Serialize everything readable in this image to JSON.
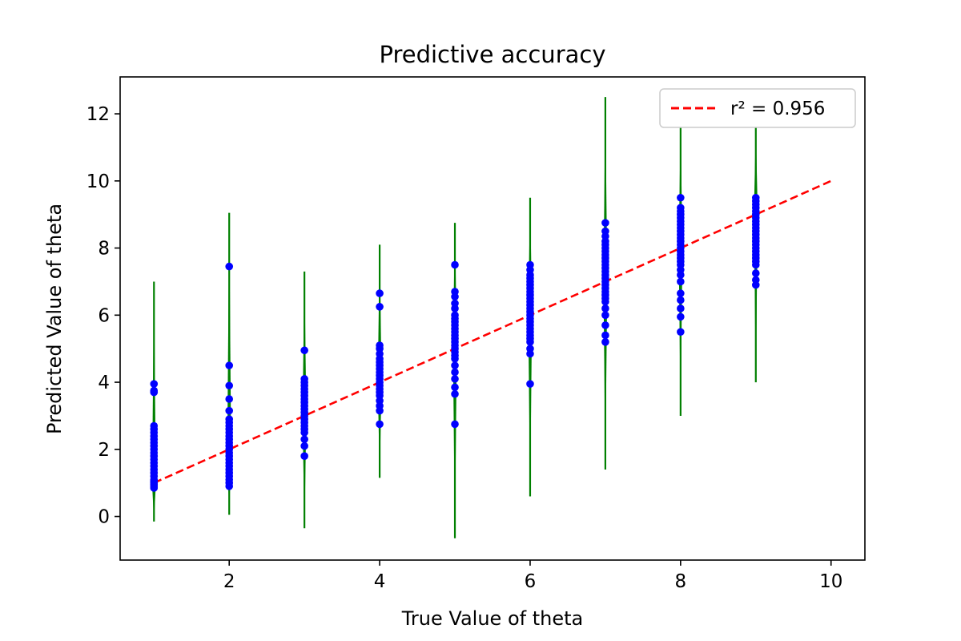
{
  "chart_data": {
    "type": "scatter",
    "title": "Predictive accuracy",
    "xlabel": "True Value of theta",
    "ylabel": "Predicted Value of theta",
    "xlim": [
      0.55,
      10.45
    ],
    "ylim": [
      -1.3,
      13.1
    ],
    "xticks": [
      2,
      4,
      6,
      8,
      10
    ],
    "yticks": [
      0,
      2,
      4,
      6,
      8,
      10,
      12
    ],
    "grid": false,
    "legend_position": "top-right",
    "colors": {
      "points": "#0000ff",
      "error_bars": "#008000",
      "fit_line": "#ff0000"
    },
    "fit_line": {
      "label": "r² = 0.956",
      "x": [
        1,
        10
      ],
      "y": [
        1,
        10
      ],
      "style": "dashed"
    },
    "groups": [
      {
        "x": 1,
        "error_min": -0.15,
        "error_max": 7.0,
        "predicted": [
          0.85,
          0.9,
          0.95,
          1.0,
          1.05,
          1.1,
          1.2,
          1.3,
          1.4,
          1.5,
          1.6,
          1.7,
          1.8,
          1.9,
          2.0,
          2.1,
          2.2,
          2.3,
          2.4,
          2.5,
          2.6,
          2.7,
          3.7,
          3.75,
          3.95
        ]
      },
      {
        "x": 2,
        "error_min": 0.05,
        "error_max": 9.05,
        "predicted": [
          0.9,
          1.0,
          1.1,
          1.2,
          1.3,
          1.4,
          1.5,
          1.6,
          1.7,
          1.8,
          1.9,
          2.0,
          2.1,
          2.2,
          2.3,
          2.4,
          2.5,
          2.6,
          2.7,
          2.8,
          2.9,
          3.15,
          3.5,
          3.9,
          4.5,
          7.45
        ]
      },
      {
        "x": 3,
        "error_min": -0.35,
        "error_max": 7.3,
        "predicted": [
          1.8,
          2.1,
          2.3,
          2.5,
          2.6,
          2.7,
          2.8,
          2.9,
          3.0,
          3.1,
          3.2,
          3.3,
          3.4,
          3.5,
          3.6,
          3.7,
          3.8,
          3.9,
          4.0,
          4.1,
          4.95
        ]
      },
      {
        "x": 4,
        "error_min": 1.15,
        "error_max": 8.1,
        "predicted": [
          2.75,
          3.15,
          3.3,
          3.45,
          3.6,
          3.7,
          3.8,
          3.9,
          4.0,
          4.1,
          4.2,
          4.3,
          4.4,
          4.5,
          4.6,
          4.7,
          4.85,
          5.0,
          5.1,
          6.25,
          6.65
        ]
      },
      {
        "x": 5,
        "error_min": -0.65,
        "error_max": 8.75,
        "predicted": [
          2.75,
          3.65,
          3.85,
          4.1,
          4.3,
          4.5,
          4.7,
          4.8,
          4.9,
          5.0,
          5.1,
          5.2,
          5.3,
          5.4,
          5.5,
          5.6,
          5.7,
          5.8,
          5.9,
          6.0,
          6.2,
          6.35,
          6.55,
          6.7,
          7.5
        ]
      },
      {
        "x": 6,
        "error_min": 0.6,
        "error_max": 9.5,
        "predicted": [
          3.95,
          4.85,
          5.0,
          5.2,
          5.3,
          5.4,
          5.5,
          5.6,
          5.7,
          5.8,
          5.9,
          6.0,
          6.1,
          6.2,
          6.3,
          6.4,
          6.5,
          6.6,
          6.7,
          6.8,
          6.9,
          7.0,
          7.1,
          7.2,
          7.35,
          7.5
        ]
      },
      {
        "x": 7,
        "error_min": 1.4,
        "error_max": 12.5,
        "predicted": [
          5.2,
          5.4,
          5.7,
          6.0,
          6.2,
          6.4,
          6.5,
          6.6,
          6.7,
          6.8,
          6.9,
          7.0,
          7.1,
          7.2,
          7.3,
          7.4,
          7.5,
          7.6,
          7.7,
          7.8,
          7.9,
          8.0,
          8.1,
          8.2,
          8.35,
          8.5,
          8.75
        ]
      },
      {
        "x": 8,
        "error_min": 3.0,
        "error_max": 11.6,
        "predicted": [
          5.5,
          5.95,
          6.2,
          6.45,
          6.65,
          7.0,
          7.2,
          7.35,
          7.5,
          7.6,
          7.7,
          7.8,
          7.9,
          8.0,
          8.1,
          8.2,
          8.3,
          8.4,
          8.5,
          8.6,
          8.7,
          8.8,
          8.9,
          9.0,
          9.1,
          9.2,
          9.5
        ]
      },
      {
        "x": 9,
        "error_min": 4.0,
        "error_max": 11.6,
        "predicted": [
          6.9,
          7.05,
          7.25,
          7.5,
          7.6,
          7.7,
          7.8,
          7.9,
          8.0,
          8.1,
          8.2,
          8.3,
          8.4,
          8.5,
          8.6,
          8.7,
          8.8,
          8.9,
          9.0,
          9.1,
          9.2,
          9.3,
          9.4,
          9.5
        ]
      }
    ]
  }
}
